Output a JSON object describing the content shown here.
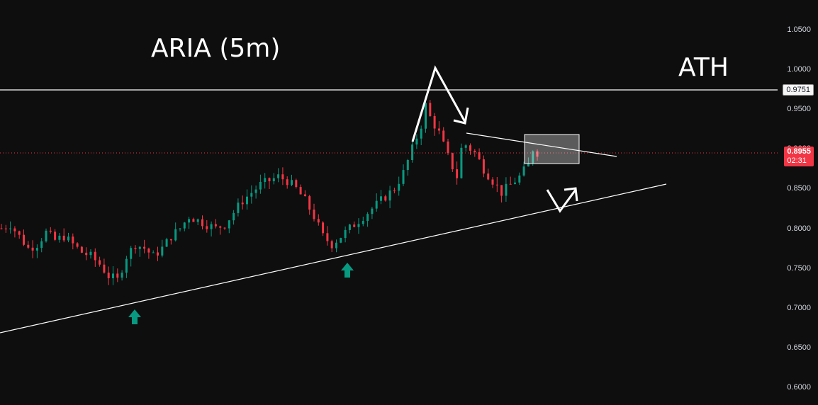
{
  "chart": {
    "title": "ARIA (5m)",
    "ath_label": "ATH",
    "colors": {
      "background": "#0e0e0e",
      "up": "#089981",
      "down": "#f23645",
      "annotation": "#ffffff",
      "axis_text": "#d1d4dc"
    }
  },
  "chart_data": {
    "type": "candlestick",
    "title": "ARIA (5m)",
    "ylim": [
      0.6,
      1.07
    ],
    "y_ticks": [
      "1.0500",
      "1.0000",
      "0.9500",
      "0.9000",
      "0.8500",
      "0.8000",
      "0.7500",
      "0.7000",
      "0.6500",
      "0.6000"
    ],
    "ath": {
      "label": "ATH",
      "value": "0.9751"
    },
    "current_price": {
      "value": "0.8955",
      "countdown": "02:31"
    },
    "close_path": [
      [
        0,
        0.8
      ],
      [
        6,
        0.805
      ],
      [
        12,
        0.79
      ],
      [
        18,
        0.775
      ],
      [
        24,
        0.78
      ],
      [
        30,
        0.795
      ],
      [
        36,
        0.785
      ],
      [
        42,
        0.79
      ],
      [
        48,
        0.78
      ],
      [
        54,
        0.77
      ],
      [
        60,
        0.765
      ],
      [
        66,
        0.755
      ],
      [
        72,
        0.74
      ],
      [
        78,
        0.735
      ],
      [
        84,
        0.765
      ],
      [
        90,
        0.78
      ],
      [
        96,
        0.775
      ],
      [
        102,
        0.765
      ],
      [
        108,
        0.775
      ],
      [
        114,
        0.79
      ],
      [
        120,
        0.8
      ],
      [
        126,
        0.815
      ],
      [
        132,
        0.81
      ],
      [
        138,
        0.805
      ],
      [
        144,
        0.8
      ],
      [
        150,
        0.805
      ],
      [
        156,
        0.82
      ],
      [
        162,
        0.835
      ],
      [
        168,
        0.845
      ],
      [
        174,
        0.855
      ],
      [
        180,
        0.86
      ],
      [
        186,
        0.865
      ],
      [
        192,
        0.86
      ],
      [
        198,
        0.85
      ],
      [
        204,
        0.835
      ],
      [
        210,
        0.815
      ],
      [
        216,
        0.79
      ],
      [
        222,
        0.78
      ],
      [
        228,
        0.79
      ],
      [
        234,
        0.8
      ],
      [
        240,
        0.81
      ],
      [
        246,
        0.82
      ],
      [
        252,
        0.83
      ],
      [
        258,
        0.84
      ],
      [
        264,
        0.85
      ],
      [
        270,
        0.87
      ],
      [
        276,
        0.9
      ],
      [
        282,
        0.93
      ],
      [
        285,
        0.955
      ],
      [
        288,
        0.94
      ],
      [
        294,
        0.92
      ],
      [
        300,
        0.89
      ],
      [
        306,
        0.865
      ],
      [
        309,
        0.9
      ],
      [
        312,
        0.905
      ],
      [
        318,
        0.895
      ],
      [
        324,
        0.875
      ],
      [
        330,
        0.86
      ],
      [
        336,
        0.845
      ],
      [
        342,
        0.855
      ],
      [
        348,
        0.865
      ],
      [
        354,
        0.88
      ],
      [
        357,
        0.9
      ],
      [
        360,
        0.8955
      ]
    ],
    "annotations": {
      "support_trendline": true,
      "resistance_trendline": true,
      "support_arrows": 2,
      "highlight_box": true
    }
  }
}
